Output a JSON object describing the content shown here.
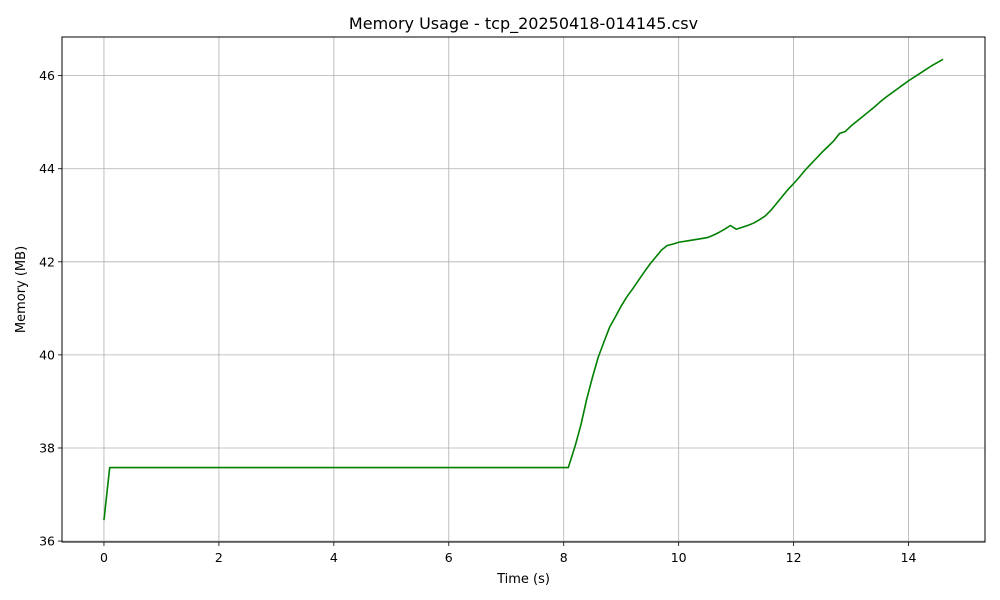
{
  "chart_data": {
    "type": "line",
    "title": "Memory Usage - tcp_20250418-014145.csv",
    "xlabel": "Time (s)",
    "ylabel": "Memory (MB)",
    "xlim": [
      -0.73,
      15.33
    ],
    "ylim": [
      35.98,
      46.83
    ],
    "xticks": [
      0,
      2,
      4,
      6,
      8,
      10,
      12,
      14
    ],
    "yticks": [
      36,
      38,
      40,
      42,
      44,
      46
    ],
    "grid": true,
    "series": [
      {
        "color": "#008000",
        "x": [
          0.0,
          0.1,
          0.5,
          1.0,
          2.0,
          3.0,
          4.0,
          5.0,
          6.0,
          7.0,
          8.0,
          8.08,
          8.2,
          8.3,
          8.4,
          8.5,
          8.6,
          8.7,
          8.8,
          8.9,
          9.0,
          9.1,
          9.2,
          9.3,
          9.4,
          9.5,
          9.6,
          9.7,
          9.8,
          9.9,
          10.0,
          10.2,
          10.4,
          10.5,
          10.6,
          10.7,
          10.8,
          10.9,
          11.0,
          11.1,
          11.2,
          11.3,
          11.4,
          11.5,
          11.6,
          11.7,
          11.8,
          11.9,
          12.0,
          12.1,
          12.2,
          12.3,
          12.4,
          12.5,
          12.6,
          12.7,
          12.8,
          12.9,
          13.0,
          13.1,
          13.2,
          13.3,
          13.4,
          13.5,
          13.6,
          13.7,
          13.8,
          13.9,
          14.0,
          14.1,
          14.2,
          14.3,
          14.4,
          14.5,
          14.6
        ],
        "y": [
          36.45,
          37.58,
          37.58,
          37.58,
          37.58,
          37.58,
          37.58,
          37.58,
          37.58,
          37.58,
          37.58,
          37.58,
          38.05,
          38.5,
          39.05,
          39.52,
          39.95,
          40.28,
          40.6,
          40.82,
          41.05,
          41.25,
          41.42,
          41.6,
          41.78,
          41.95,
          42.1,
          42.25,
          42.35,
          42.38,
          42.42,
          42.46,
          42.5,
          42.52,
          42.57,
          42.63,
          42.7,
          42.78,
          42.7,
          42.74,
          42.78,
          42.83,
          42.9,
          42.98,
          43.1,
          43.25,
          43.4,
          43.55,
          43.68,
          43.82,
          43.97,
          44.1,
          44.23,
          44.36,
          44.48,
          44.6,
          44.76,
          44.8,
          44.92,
          45.02,
          45.12,
          45.22,
          45.32,
          45.43,
          45.53,
          45.62,
          45.71,
          45.8,
          45.89,
          45.97,
          46.05,
          46.13,
          46.21,
          46.28,
          46.35
        ]
      }
    ]
  }
}
